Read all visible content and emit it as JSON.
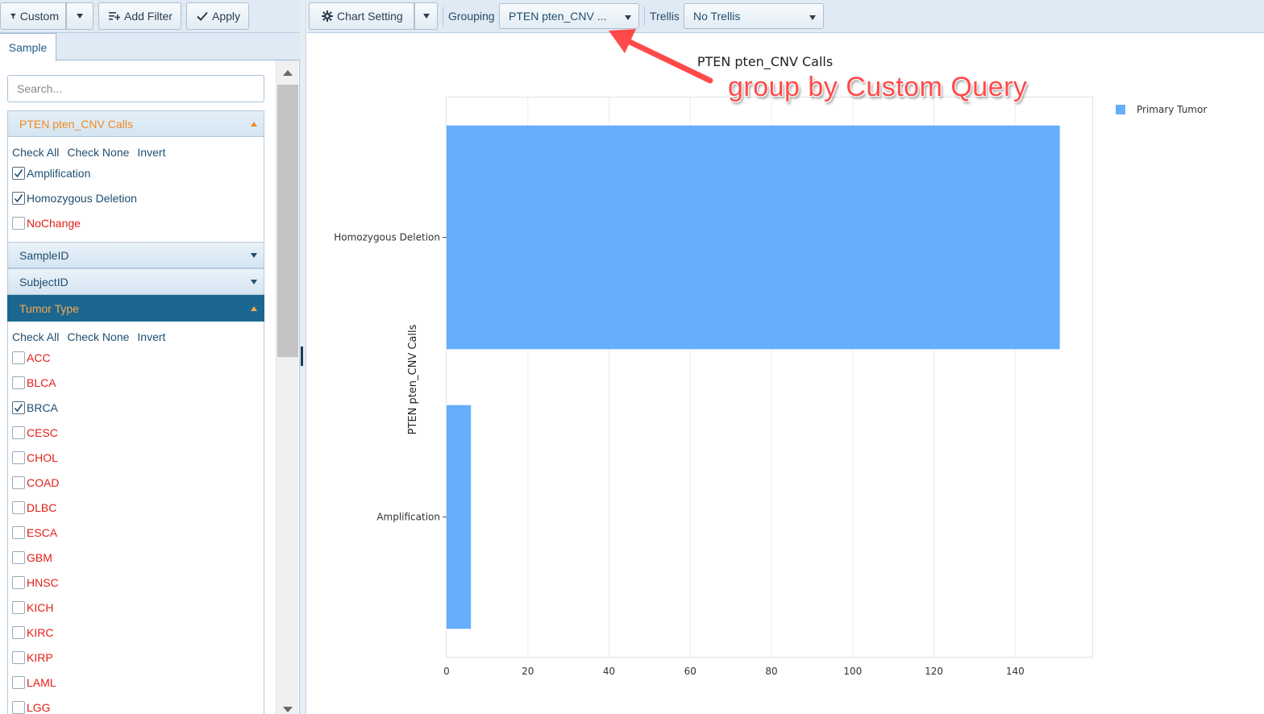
{
  "left_toolbar": {
    "custom_label": "Custom",
    "add_filter_label": "Add Filter",
    "apply_label": "Apply"
  },
  "tabs": [
    {
      "label": "Sample"
    }
  ],
  "search": {
    "placeholder": "Search..."
  },
  "facets": [
    {
      "title": "PTEN pten_CNV Calls",
      "state": "expanded",
      "actions": {
        "check_all": "Check All",
        "check_none": "Check None",
        "invert": "Invert"
      },
      "options": [
        {
          "label": "Amplification",
          "checked": true
        },
        {
          "label": "Homozygous Deletion",
          "checked": true
        },
        {
          "label": "NoChange",
          "checked": false
        }
      ]
    },
    {
      "title": "SampleID",
      "state": "collapsed"
    },
    {
      "title": "SubjectID",
      "state": "collapsed"
    },
    {
      "title": "Tumor Type",
      "state": "expanded",
      "actions": {
        "check_all": "Check All",
        "check_none": "Check None",
        "invert": "Invert"
      },
      "options": [
        {
          "label": "ACC",
          "checked": false
        },
        {
          "label": "BLCA",
          "checked": false
        },
        {
          "label": "BRCA",
          "checked": true
        },
        {
          "label": "CESC",
          "checked": false
        },
        {
          "label": "CHOL",
          "checked": false
        },
        {
          "label": "COAD",
          "checked": false
        },
        {
          "label": "DLBC",
          "checked": false
        },
        {
          "label": "ESCA",
          "checked": false
        },
        {
          "label": "GBM",
          "checked": false
        },
        {
          "label": "HNSC",
          "checked": false
        },
        {
          "label": "KICH",
          "checked": false
        },
        {
          "label": "KIRC",
          "checked": false
        },
        {
          "label": "KIRP",
          "checked": false
        },
        {
          "label": "LAML",
          "checked": false
        },
        {
          "label": "LGG",
          "checked": false
        }
      ]
    }
  ],
  "right_toolbar": {
    "chart_setting_label": "Chart Setting",
    "grouping_label": "Grouping",
    "grouping_value": "PTEN pten_CNV ...",
    "trellis_label": "Trellis",
    "trellis_value": "No Trellis"
  },
  "annotation": {
    "text": "group by Custom Query"
  },
  "colors": {
    "bar": "#64aefb",
    "annotation": "#ff4a4a",
    "unchecked_option": "#e0201a",
    "accent_orange": "#f08a24",
    "header_dark": "#1b6790"
  },
  "chart_data": {
    "type": "bar",
    "orientation": "horizontal",
    "title": "PTEN pten_CNV Calls",
    "ylabel": "PTEN pten_CNV Calls",
    "xlabel": "",
    "categories": [
      "Homozygous Deletion",
      "Amplification"
    ],
    "series": [
      {
        "name": "Primary Tumor",
        "values": [
          151,
          6
        ]
      }
    ],
    "xlim": [
      0,
      159
    ],
    "xticks": [
      0,
      20,
      40,
      60,
      80,
      100,
      120,
      140
    ],
    "grid": true,
    "legend_position": "top-right"
  }
}
